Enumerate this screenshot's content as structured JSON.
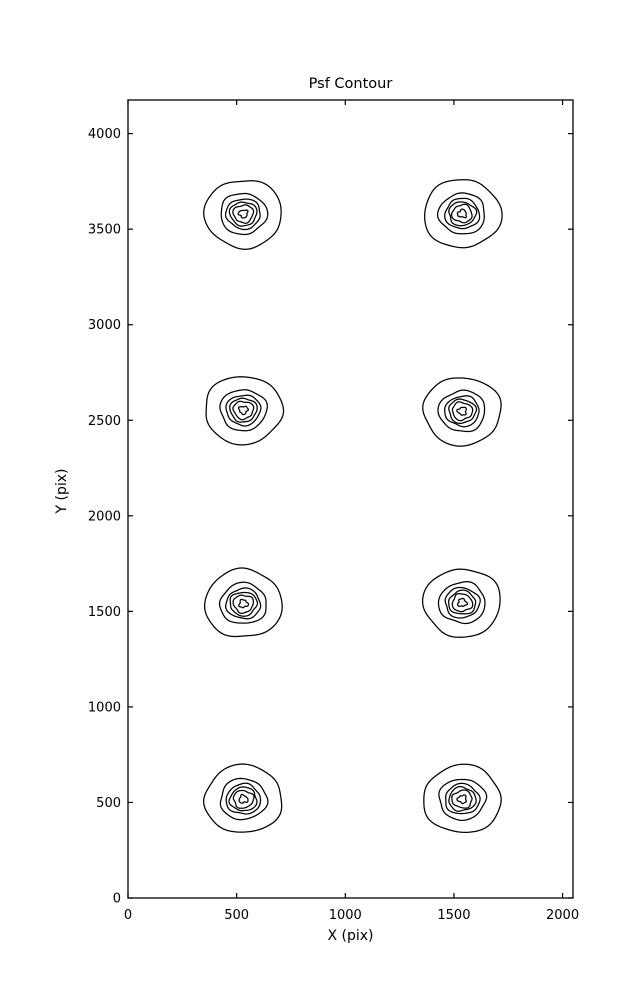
{
  "figure": {
    "background": "#ffffff",
    "line_color": "#000000"
  },
  "chart_data": {
    "type": "contour",
    "title": "Psf Contour",
    "xlabel": "X (pix)",
    "ylabel": "Y (pix)",
    "xlim": [
      0,
      2048
    ],
    "ylim": [
      0,
      4176
    ],
    "xticks": [
      0,
      500,
      1000,
      1500,
      2000
    ],
    "yticks": [
      0,
      500,
      1000,
      1500,
      2000,
      2500,
      3000,
      3500,
      4000
    ],
    "grid": false,
    "legend": "none",
    "levels": 6,
    "contour_radii_pix": [
      178,
      107,
      79,
      62,
      46,
      20
    ],
    "sources": [
      {
        "x": 531,
        "y": 517
      },
      {
        "x": 1538,
        "y": 517
      },
      {
        "x": 531,
        "y": 1540
      },
      {
        "x": 1538,
        "y": 1545
      },
      {
        "x": 531,
        "y": 2554
      },
      {
        "x": 1538,
        "y": 2548
      },
      {
        "x": 531,
        "y": 3581
      },
      {
        "x": 1538,
        "y": 3581
      }
    ]
  }
}
